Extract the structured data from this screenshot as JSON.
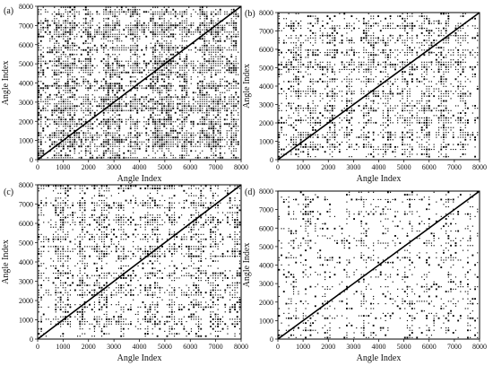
{
  "chart_data": [
    {
      "type": "heatmap",
      "panel_label": "(a)",
      "xlabel": "Angle Index",
      "ylabel": "Angle Index",
      "xlim": [
        0,
        8000
      ],
      "ylim": [
        0,
        8000
      ],
      "x_ticks": [
        "0",
        "1000",
        "2000",
        "3000",
        "4000",
        "5000",
        "6000",
        "7000",
        "8000"
      ],
      "y_ticks": [
        "0",
        "1000",
        "2000",
        "3000",
        "4000",
        "5000",
        "6000",
        "7000",
        "8000"
      ],
      "main_diagonal": true,
      "density": "high",
      "dark_bands": [
        [
          0,
          180
        ],
        [
          650,
          1500
        ],
        [
          1850,
          2150
        ],
        [
          2550,
          3300
        ],
        [
          3650,
          3950
        ],
        [
          4450,
          5250
        ],
        [
          5650,
          5900
        ],
        [
          6350,
          7200
        ],
        [
          7550,
          7800
        ]
      ]
    },
    {
      "type": "heatmap",
      "panel_label": "(b)",
      "xlabel": "Angle Index",
      "ylabel": "Angle Index",
      "xlim": [
        0,
        8000
      ],
      "ylim": [
        0,
        8000
      ],
      "x_ticks": [
        "0",
        "1000",
        "2000",
        "3000",
        "4000",
        "5000",
        "6000",
        "7000",
        "8000"
      ],
      "y_ticks": [
        "0",
        "1000",
        "2000",
        "3000",
        "4000",
        "5000",
        "6000",
        "7000",
        "8000"
      ],
      "main_diagonal": true,
      "density": "medium",
      "dark_bands": [
        [
          0,
          120
        ],
        [
          500,
          950
        ],
        [
          1200,
          1500
        ],
        [
          1900,
          2350
        ],
        [
          2650,
          3000
        ],
        [
          3350,
          3800
        ],
        [
          4150,
          4500
        ],
        [
          4900,
          5350
        ],
        [
          5650,
          6000
        ],
        [
          6350,
          6800
        ],
        [
          7100,
          7450
        ]
      ]
    },
    {
      "type": "heatmap",
      "panel_label": "(c)",
      "xlabel": "Angle Index",
      "ylabel": "Angle Index",
      "xlim": [
        0,
        8000
      ],
      "ylim": [
        0,
        8000
      ],
      "x_ticks": [
        "0",
        "1000",
        "2000",
        "3000",
        "4000",
        "5000",
        "6000",
        "7000",
        "8000"
      ],
      "y_ticks": [
        "0",
        "1000",
        "2000",
        "3000",
        "4000",
        "5000",
        "6000",
        "7000",
        "8000"
      ],
      "main_diagonal": true,
      "density": "medium",
      "dark_bands": [
        [
          0,
          150
        ],
        [
          700,
          1250
        ],
        [
          1650,
          1900
        ],
        [
          2200,
          2800
        ],
        [
          3150,
          3450
        ],
        [
          4200,
          4800
        ],
        [
          5150,
          5450
        ],
        [
          5900,
          6450
        ],
        [
          6800,
          7100
        ],
        [
          7750,
          8000
        ]
      ]
    },
    {
      "type": "heatmap",
      "panel_label": "(d)",
      "xlabel": "Angle Index",
      "ylabel": "Angle Index",
      "xlim": [
        0,
        8000
      ],
      "ylim": [
        0,
        8000
      ],
      "x_ticks": [
        "0",
        "1000",
        "2000",
        "3000",
        "4000",
        "5000",
        "6000",
        "7000",
        "8000"
      ],
      "y_ticks": [
        "0",
        "1000",
        "2000",
        "3000",
        "4000",
        "5000",
        "6000",
        "7000",
        "8000"
      ],
      "main_diagonal": true,
      "density": "low",
      "dark_bands": [
        [
          0,
          80
        ],
        [
          350,
          650
        ],
        [
          1100,
          1300
        ],
        [
          1800,
          2150
        ],
        [
          2650,
          2850
        ],
        [
          3250,
          3550
        ],
        [
          4200,
          4450
        ],
        [
          5000,
          5350
        ],
        [
          5850,
          6050
        ],
        [
          6650,
          6950
        ],
        [
          7450,
          7650
        ]
      ]
    }
  ]
}
